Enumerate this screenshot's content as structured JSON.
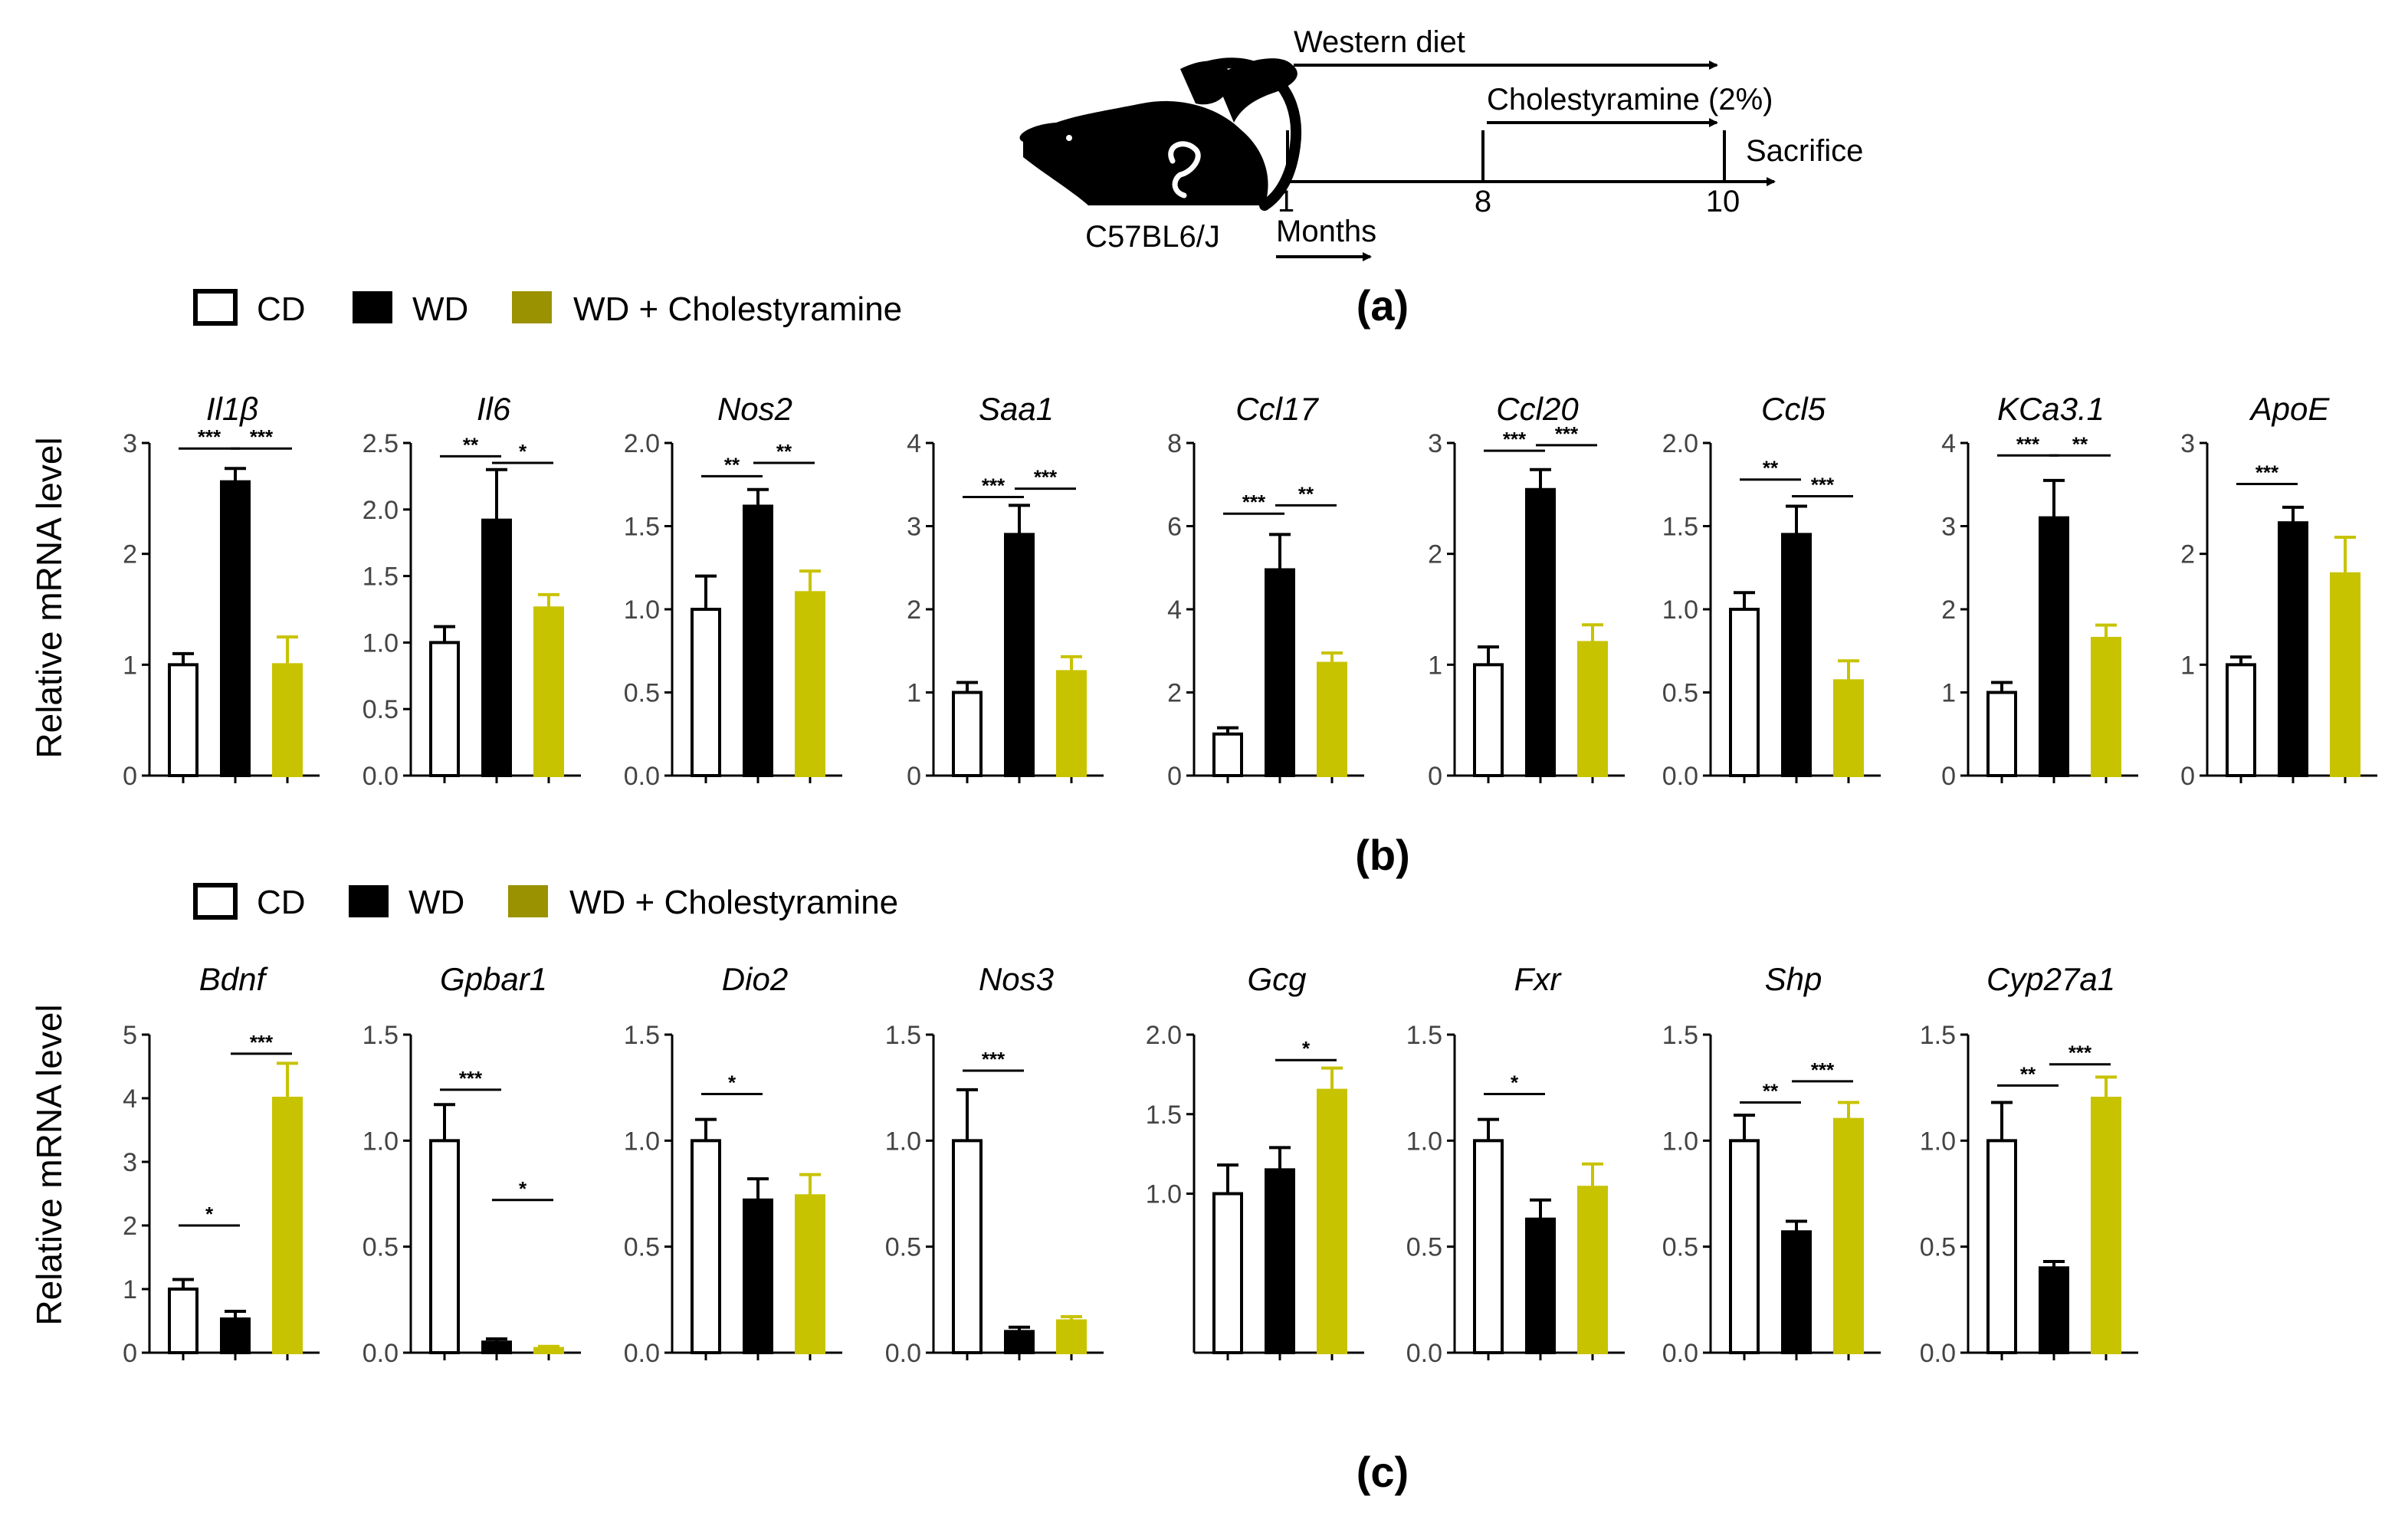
{
  "colors": {
    "cd": "#ffffff",
    "wd": "#000000",
    "chol": "#c8c300",
    "chol_legend": "#9a9200",
    "axis": "#000000"
  },
  "panel_a": {
    "label": "(a)",
    "strain": "C57BL6/J",
    "western_diet": "Western diet",
    "cholestyramine": "Cholestyramine (2%)",
    "sacrifice": "Sacrifice",
    "months_label": "Months",
    "ticks": [
      "1",
      "8",
      "10"
    ],
    "mouse_icon": "mouse-icon"
  },
  "panel_b": {
    "label": "(b)",
    "legend": [
      "CD",
      "WD",
      "WD + Cholestyramine"
    ],
    "ylabel": "Relative mRNA level"
  },
  "panel_c": {
    "label": "(c)",
    "legend": [
      "CD",
      "WD",
      "WD + Cholestyramine"
    ],
    "ylabel": "Relative mRNA level"
  },
  "chart_data": [
    {
      "type": "bar",
      "panel": "b",
      "title": "Il1β",
      "categories": [
        "CD",
        "WD",
        "WD + Cholestyramine"
      ],
      "values": [
        1.0,
        2.65,
        1.0
      ],
      "errors": [
        0.1,
        0.12,
        0.25
      ],
      "ylim": [
        0,
        3
      ],
      "yticks": [
        "0",
        "1",
        "2",
        "3"
      ],
      "sig": [
        {
          "a": 0,
          "b": 1,
          "text": "***",
          "y": 2.95
        },
        {
          "a": 1,
          "b": 2,
          "text": "***",
          "y": 2.95
        }
      ]
    },
    {
      "type": "bar",
      "panel": "b",
      "title": "Il6",
      "categories": [
        "CD",
        "WD",
        "WD + Cholestyramine"
      ],
      "values": [
        1.0,
        1.92,
        1.26
      ],
      "errors": [
        0.12,
        0.38,
        0.1
      ],
      "ylim": [
        0,
        2.5
      ],
      "yticks": [
        "0.0",
        "0.5",
        "1.0",
        "1.5",
        "2.0",
        "2.5"
      ],
      "sig": [
        {
          "a": 0,
          "b": 1,
          "text": "**",
          "y": 2.4
        },
        {
          "a": 1,
          "b": 2,
          "text": "*",
          "y": 2.35
        }
      ]
    },
    {
      "type": "bar",
      "panel": "b",
      "title": "Nos2",
      "categories": [
        "CD",
        "WD",
        "WD + Cholestyramine"
      ],
      "values": [
        1.0,
        1.62,
        1.1
      ],
      "errors": [
        0.2,
        0.1,
        0.13
      ],
      "ylim": [
        0,
        2.0
      ],
      "yticks": [
        "0.0",
        "0.5",
        "1.0",
        "1.5",
        "2.0"
      ],
      "sig": [
        {
          "a": 0,
          "b": 1,
          "text": "**",
          "y": 1.8
        },
        {
          "a": 1,
          "b": 2,
          "text": "**",
          "y": 1.88
        }
      ]
    },
    {
      "type": "bar",
      "panel": "b",
      "title": "Saa1",
      "categories": [
        "CD",
        "WD",
        "WD + Cholestyramine"
      ],
      "values": [
        1.0,
        2.9,
        1.25
      ],
      "errors": [
        0.12,
        0.35,
        0.18
      ],
      "ylim": [
        0,
        4
      ],
      "yticks": [
        "0",
        "1",
        "2",
        "3",
        "4"
      ],
      "sig": [
        {
          "a": 0,
          "b": 1,
          "text": "***",
          "y": 3.35
        },
        {
          "a": 1,
          "b": 2,
          "text": "***",
          "y": 3.45
        }
      ]
    },
    {
      "type": "bar",
      "panel": "b",
      "title": "Ccl17",
      "categories": [
        "CD",
        "WD",
        "WD + Cholestyramine"
      ],
      "values": [
        1.0,
        4.95,
        2.7
      ],
      "errors": [
        0.15,
        0.85,
        0.25
      ],
      "ylim": [
        0,
        8
      ],
      "yticks": [
        "0",
        "2",
        "4",
        "6",
        "8"
      ],
      "sig": [
        {
          "a": 0,
          "b": 1,
          "text": "***",
          "y": 6.3
        },
        {
          "a": 1,
          "b": 2,
          "text": "**",
          "y": 6.5
        }
      ]
    },
    {
      "type": "bar",
      "panel": "b",
      "title": "Ccl20",
      "categories": [
        "CD",
        "WD",
        "WD + Cholestyramine"
      ],
      "values": [
        1.0,
        2.58,
        1.2
      ],
      "errors": [
        0.16,
        0.18,
        0.16
      ],
      "ylim": [
        0,
        3
      ],
      "yticks": [
        "0",
        "1",
        "2",
        "3"
      ],
      "sig": [
        {
          "a": 0,
          "b": 1,
          "text": "***",
          "y": 2.93
        },
        {
          "a": 1,
          "b": 2,
          "text": "***",
          "y": 2.98
        }
      ]
    },
    {
      "type": "bar",
      "panel": "b",
      "title": "Ccl5",
      "categories": [
        "CD",
        "WD",
        "WD + Cholestyramine"
      ],
      "values": [
        1.0,
        1.45,
        0.57
      ],
      "errors": [
        0.1,
        0.17,
        0.12
      ],
      "ylim": [
        0,
        2.0
      ],
      "yticks": [
        "0.0",
        "0.5",
        "1.0",
        "1.5",
        "2.0"
      ],
      "sig": [
        {
          "a": 0,
          "b": 1,
          "text": "**",
          "y": 1.78
        },
        {
          "a": 1,
          "b": 2,
          "text": "***",
          "y": 1.68
        }
      ]
    },
    {
      "type": "bar",
      "panel": "b",
      "title": "KCa3.1",
      "categories": [
        "CD",
        "WD",
        "WD + Cholestyramine"
      ],
      "values": [
        1.0,
        3.1,
        1.65
      ],
      "errors": [
        0.12,
        0.45,
        0.16
      ],
      "ylim": [
        0,
        4
      ],
      "yticks": [
        "0",
        "1",
        "2",
        "3",
        "4"
      ],
      "sig": [
        {
          "a": 0,
          "b": 1,
          "text": "***",
          "y": 3.85
        },
        {
          "a": 1,
          "b": 2,
          "text": "**",
          "y": 3.85
        }
      ]
    },
    {
      "type": "bar",
      "panel": "b",
      "title": "ApoE",
      "categories": [
        "CD",
        "WD",
        "WD + Cholestyramine"
      ],
      "values": [
        1.0,
        2.28,
        1.82
      ],
      "errors": [
        0.07,
        0.14,
        0.33
      ],
      "ylim": [
        0,
        3
      ],
      "yticks": [
        "0",
        "1",
        "2",
        "3"
      ],
      "sig": [
        {
          "a": 0,
          "b": 1,
          "text": "***",
          "y": 2.63
        }
      ]
    },
    {
      "type": "bar",
      "panel": "c",
      "title": "Bdnf",
      "categories": [
        "CD",
        "WD",
        "WD + Cholestyramine"
      ],
      "values": [
        1.0,
        0.53,
        4.0
      ],
      "errors": [
        0.15,
        0.12,
        0.55
      ],
      "ylim": [
        0,
        5
      ],
      "yticks": [
        "0",
        "1",
        "2",
        "3",
        "4",
        "5"
      ],
      "sig": [
        {
          "a": 0,
          "b": 1,
          "text": "*",
          "y": 2.0
        },
        {
          "a": 1,
          "b": 2,
          "text": "***",
          "y": 4.7
        }
      ]
    },
    {
      "type": "bar",
      "panel": "c",
      "title": "Gpbar1",
      "categories": [
        "CD",
        "WD",
        "WD + Cholestyramine"
      ],
      "values": [
        1.0,
        0.05,
        0.02
      ],
      "errors": [
        0.17,
        0.015,
        0.01
      ],
      "ylim": [
        0,
        1.5
      ],
      "yticks": [
        "0.0",
        "0.5",
        "1.0",
        "1.5"
      ],
      "sig": [
        {
          "a": 0,
          "b": 1,
          "text": "***",
          "y": 1.24
        },
        {
          "a": 1,
          "b": 2,
          "text": "*",
          "y": 0.72
        }
      ]
    },
    {
      "type": "bar",
      "panel": "c",
      "title": "Dio2",
      "categories": [
        "CD",
        "WD",
        "WD + Cholestyramine"
      ],
      "values": [
        1.0,
        0.72,
        0.74
      ],
      "errors": [
        0.1,
        0.1,
        0.1
      ],
      "ylim": [
        0,
        1.5
      ],
      "yticks": [
        "0.0",
        "0.5",
        "1.0",
        "1.5"
      ],
      "sig": [
        {
          "a": 0,
          "b": 1,
          "text": "*",
          "y": 1.22
        }
      ]
    },
    {
      "type": "bar",
      "panel": "c",
      "title": "Nos3",
      "categories": [
        "CD",
        "WD",
        "WD + Cholestyramine"
      ],
      "values": [
        1.0,
        0.1,
        0.15
      ],
      "errors": [
        0.24,
        0.02,
        0.02
      ],
      "ylim": [
        0,
        1.5
      ],
      "yticks": [
        "0.0",
        "0.5",
        "1.0",
        "1.5"
      ],
      "sig": [
        {
          "a": 0,
          "b": 1,
          "text": "***",
          "y": 1.33
        }
      ]
    },
    {
      "type": "bar",
      "panel": "c",
      "title": "Gcg",
      "categories": [
        "CD",
        "WD",
        "WD + Cholestyramine"
      ],
      "values": [
        1.0,
        1.15,
        1.65
      ],
      "errors": [
        0.18,
        0.14,
        0.14
      ],
      "ylim": [
        0,
        2.0
      ],
      "yticks": [
        "1.0",
        "1.5",
        "2.0"
      ],
      "sig": [
        {
          "a": 1,
          "b": 2,
          "text": "*",
          "y": 1.84
        }
      ]
    },
    {
      "type": "bar",
      "panel": "c",
      "title": "Fxr",
      "categories": [
        "CD",
        "WD",
        "WD + Cholestyramine"
      ],
      "values": [
        1.0,
        0.63,
        0.78
      ],
      "errors": [
        0.1,
        0.09,
        0.11
      ],
      "ylim": [
        0,
        1.5
      ],
      "yticks": [
        "0.0",
        "0.5",
        "1.0",
        "1.5"
      ],
      "sig": [
        {
          "a": 0,
          "b": 1,
          "text": "*",
          "y": 1.22
        }
      ]
    },
    {
      "type": "bar",
      "panel": "c",
      "title": "Shp",
      "categories": [
        "CD",
        "WD",
        "WD + Cholestyramine"
      ],
      "values": [
        1.0,
        0.57,
        1.1
      ],
      "errors": [
        0.12,
        0.05,
        0.08
      ],
      "ylim": [
        0,
        1.5
      ],
      "yticks": [
        "0.0",
        "0.5",
        "1.0",
        "1.5"
      ],
      "sig": [
        {
          "a": 0,
          "b": 1,
          "text": "**",
          "y": 1.18
        },
        {
          "a": 1,
          "b": 2,
          "text": "***",
          "y": 1.28
        }
      ]
    },
    {
      "type": "bar",
      "panel": "c",
      "title": "Cyp27a1",
      "categories": [
        "CD",
        "WD",
        "WD + Cholestyramine"
      ],
      "values": [
        1.0,
        0.4,
        1.2
      ],
      "errors": [
        0.18,
        0.03,
        0.1
      ],
      "ylim": [
        0,
        1.5
      ],
      "yticks": [
        "0.0",
        "0.5",
        "1.0",
        "1.5"
      ],
      "sig": [
        {
          "a": 0,
          "b": 1,
          "text": "**",
          "y": 1.26
        },
        {
          "a": 1,
          "b": 2,
          "text": "***",
          "y": 1.36
        }
      ]
    }
  ]
}
